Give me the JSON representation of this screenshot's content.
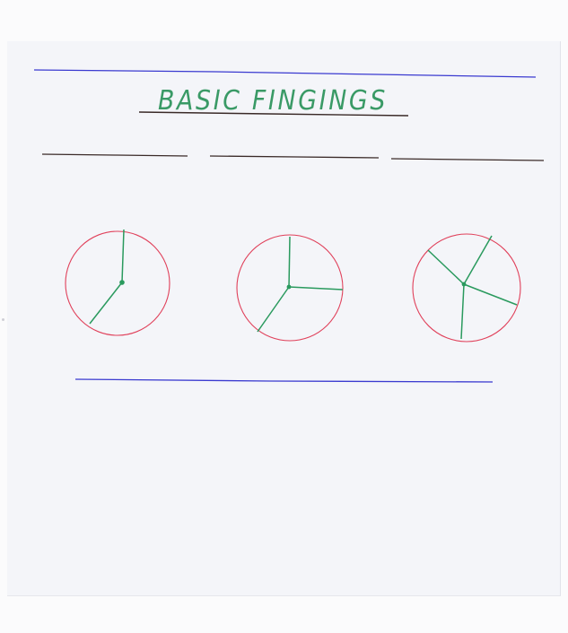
{
  "title": "BASIC FINGINGS",
  "colors": {
    "paper": "#f4f5f9",
    "blue_ink": "#3a3ad0",
    "black_ink": "#3a2a28",
    "red_ink": "#e0405a",
    "green_ink": "#2a9a5e"
  },
  "circles": [
    {
      "segments": 2
    },
    {
      "segments": 3
    },
    {
      "segments": 4
    }
  ]
}
